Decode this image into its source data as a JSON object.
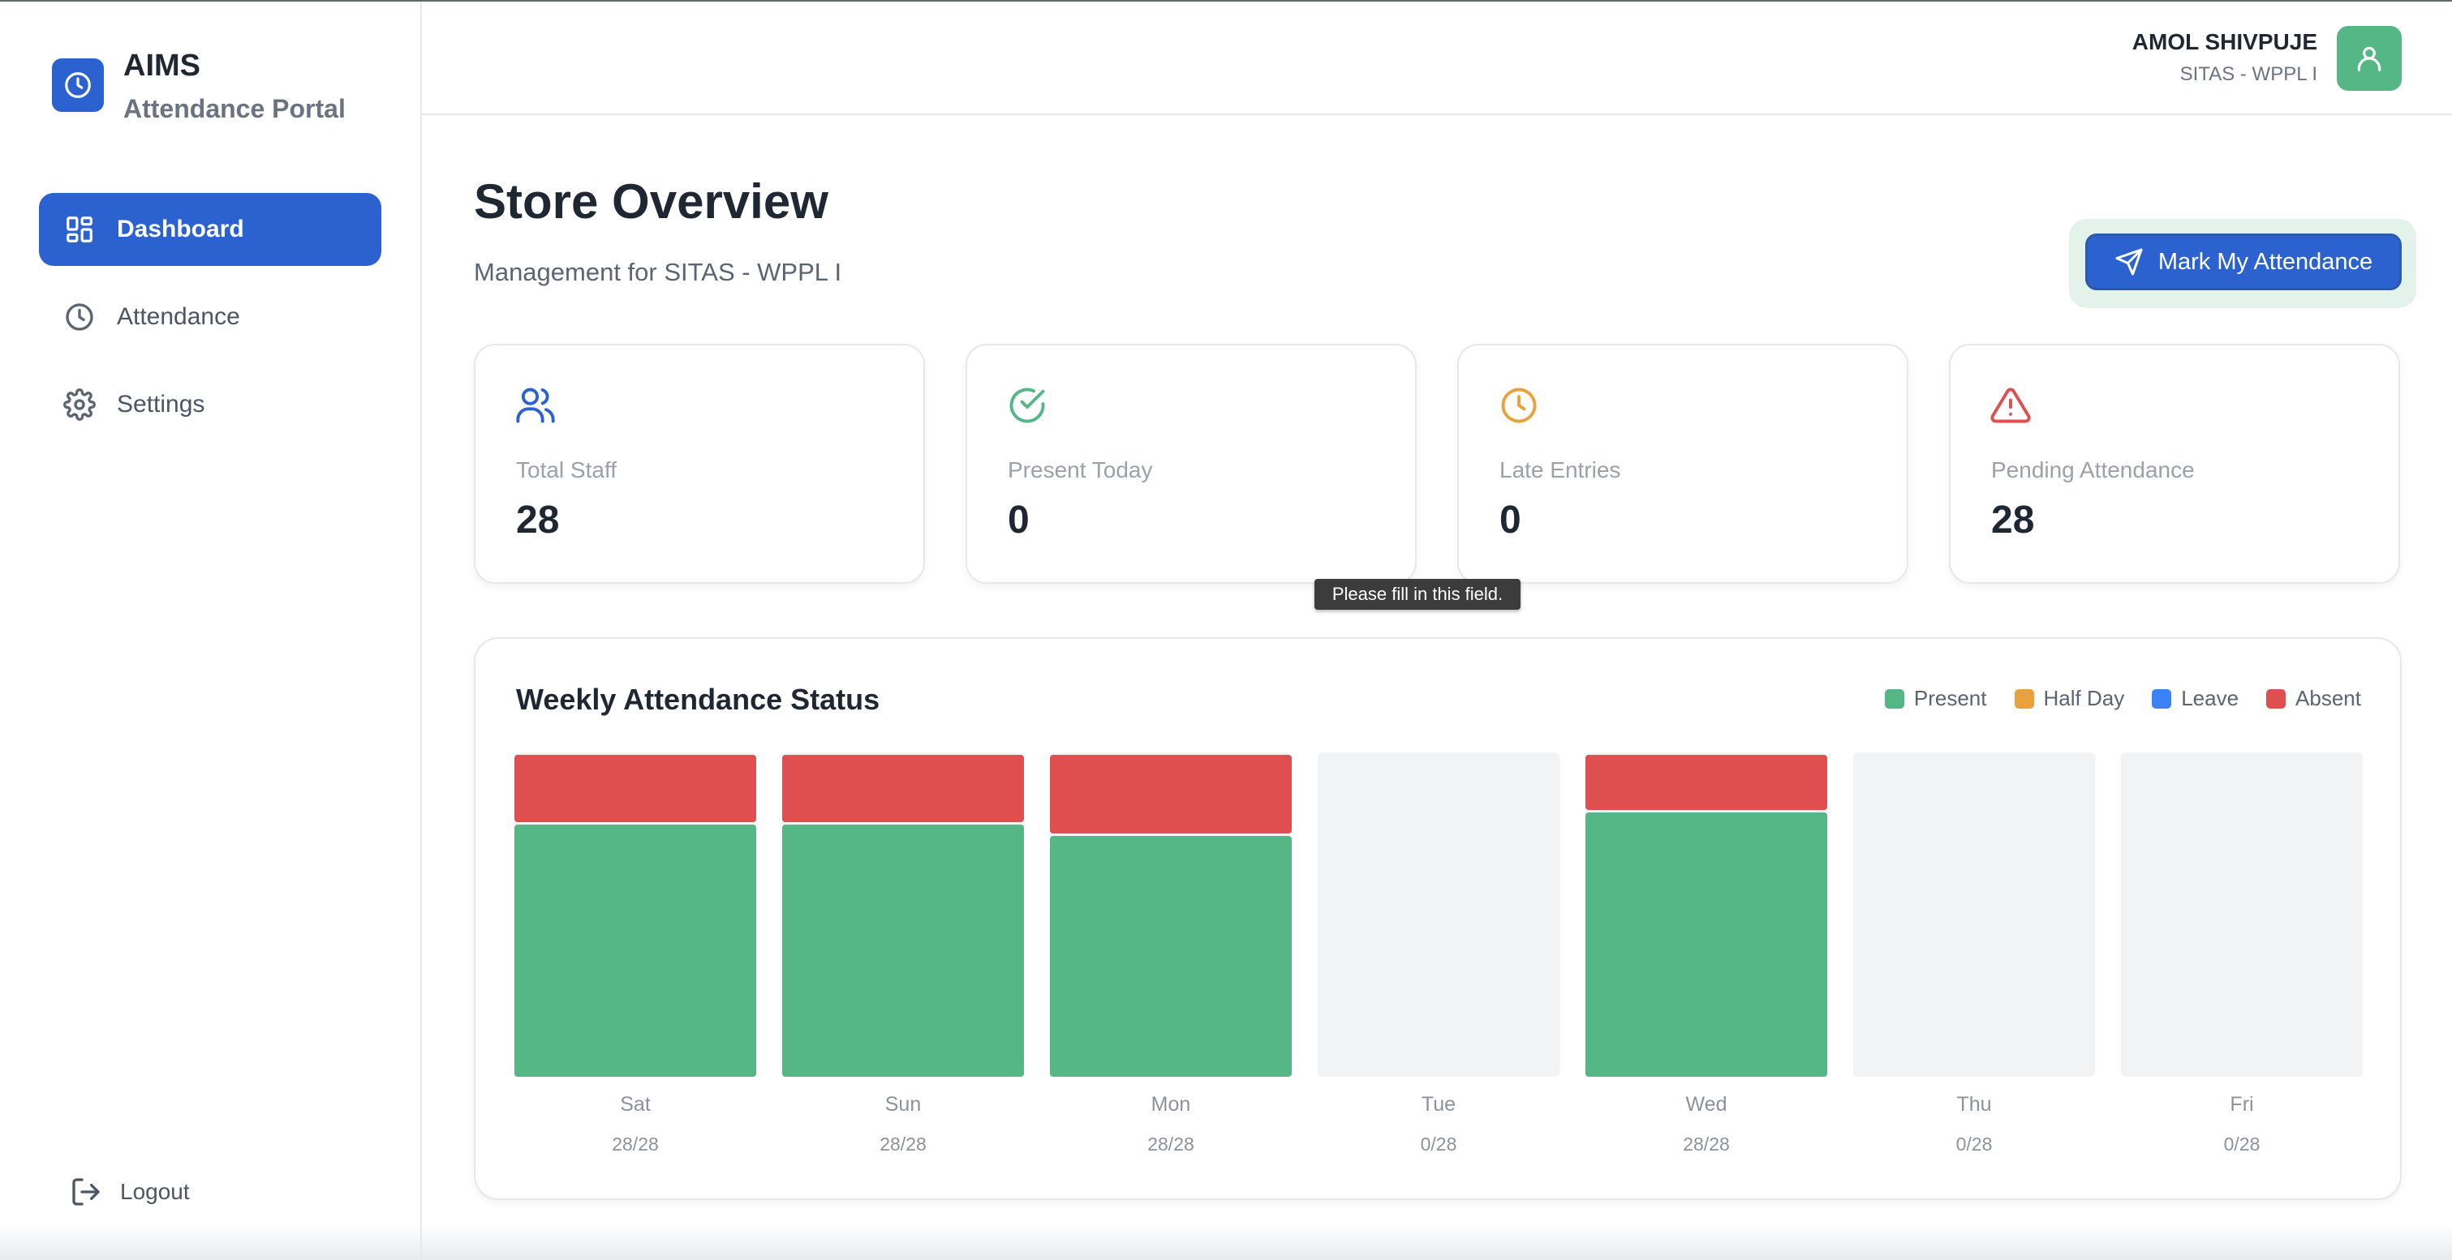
{
  "brand": {
    "name": "AIMS",
    "subtitle": "Attendance Portal",
    "logo_icon": "clock-icon"
  },
  "sidebar": {
    "items": [
      {
        "label": "Dashboard",
        "icon": "dashboard-grid-icon",
        "active": true
      },
      {
        "label": "Attendance",
        "icon": "clock-icon",
        "active": false
      },
      {
        "label": "Settings",
        "icon": "gear-icon",
        "active": false
      }
    ],
    "logout_label": "Logout"
  },
  "header": {
    "user_name": "AMOL SHIVPUJE",
    "user_store": "SITAS - WPPL I",
    "avatar_icon": "user-icon"
  },
  "main": {
    "title": "Store Overview",
    "subtitle": "Management for SITAS - WPPL I",
    "mark_attendance_label": "Mark My Attendance",
    "tooltip": "Please fill in this field."
  },
  "stats": [
    {
      "label": "Total Staff",
      "value": "28",
      "icon": "users-icon",
      "color": "#2b62cf"
    },
    {
      "label": "Present Today",
      "value": "0",
      "icon": "check-circle-icon",
      "color": "#55b786"
    },
    {
      "label": "Late Entries",
      "value": "0",
      "icon": "clock-icon",
      "color": "#e9a23b"
    },
    {
      "label": "Pending Attendance",
      "value": "28",
      "icon": "alert-triangle-icon",
      "color": "#df4f4f"
    }
  ],
  "colors": {
    "present": "#55b786",
    "half_day": "#e9a23b",
    "leave": "#3b82f6",
    "absent": "#df4f4f",
    "accent": "#2b62cf"
  },
  "chart_data": {
    "type": "bar",
    "title": "Weekly Attendance Status",
    "stacked": true,
    "categories": [
      "Sat",
      "Sun",
      "Mon",
      "Tue",
      "Wed",
      "Thu",
      "Fri"
    ],
    "count_labels": [
      "28/28",
      "28/28",
      "28/28",
      "0/28",
      "28/28",
      "0/28",
      "0/28"
    ],
    "total": 28,
    "legend": [
      "Present",
      "Half Day",
      "Leave",
      "Absent"
    ],
    "legend_position": "top-right",
    "series": [
      {
        "name": "Present",
        "values": [
          22,
          22,
          21,
          0,
          23,
          0,
          0
        ]
      },
      {
        "name": "Half Day",
        "values": [
          0,
          0,
          0,
          0,
          0,
          0,
          0
        ]
      },
      {
        "name": "Leave",
        "values": [
          0,
          0,
          0,
          0,
          0,
          0,
          0
        ]
      },
      {
        "name": "Absent",
        "values": [
          6,
          6,
          7,
          0,
          5,
          0,
          0
        ]
      }
    ]
  }
}
